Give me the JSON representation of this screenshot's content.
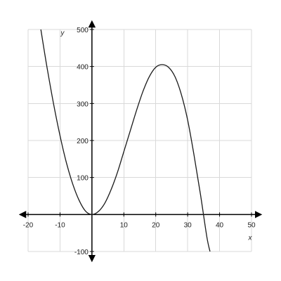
{
  "chart_data": {
    "type": "line",
    "title": "",
    "xlabel": "x",
    "ylabel": "y",
    "xlim": [
      -20,
      50
    ],
    "ylim": [
      -100,
      500
    ],
    "x_ticks": [
      -20,
      -10,
      10,
      20,
      30,
      40,
      50
    ],
    "x_tick_labels": [
      "-20",
      "-10",
      "10",
      "20",
      "30",
      "40",
      "50"
    ],
    "y_ticks": [
      -100,
      100,
      200,
      300,
      400,
      500
    ],
    "y_tick_labels": [
      "-100",
      "100",
      "200",
      "300",
      "400",
      "500"
    ],
    "grid": true,
    "series": [
      {
        "x": [
          -16,
          -15,
          -14,
          -12,
          -10,
          -8,
          -6,
          -4,
          -2,
          0,
          2,
          4,
          6,
          8,
          10,
          12,
          14,
          16,
          18,
          20,
          22,
          24,
          26,
          28,
          30,
          32,
          34,
          36,
          37
        ],
        "y": [
          500,
          446,
          394,
          298,
          213,
          140,
          82,
          38,
          9,
          0,
          8,
          30,
          67,
          114,
          170,
          226,
          282,
          333,
          373,
          398,
          405,
          398,
          373,
          325,
          255,
          160,
          55,
          -60,
          -100
        ]
      }
    ]
  }
}
